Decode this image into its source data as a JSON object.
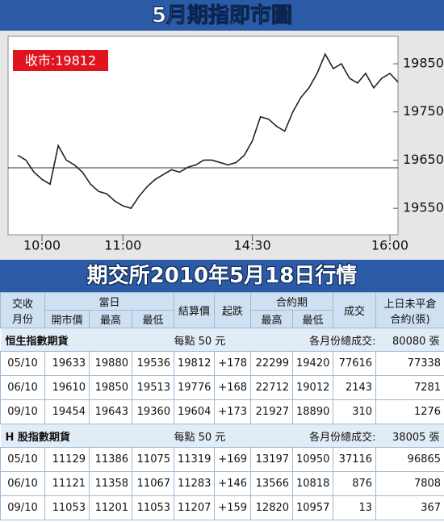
{
  "chart_data": {
    "type": "line",
    "title": "5月期指即市圖",
    "annotation": "收市:19812",
    "categories": [
      null,
      null,
      null,
      "10:00",
      null,
      null,
      null,
      null,
      null,
      null,
      null,
      null,
      null,
      "11:00",
      null,
      null,
      null,
      null,
      null,
      null,
      null,
      null,
      null,
      null,
      null,
      null,
      null,
      null,
      null,
      "14:30",
      null,
      null,
      null,
      null,
      null,
      null,
      null,
      null,
      null,
      null,
      null,
      null,
      null,
      null,
      null,
      null,
      "16:00",
      null
    ],
    "values": [
      19660,
      19650,
      19625,
      19610,
      19600,
      19680,
      19650,
      19640,
      19625,
      19600,
      19585,
      19580,
      19565,
      19555,
      19550,
      19575,
      19595,
      19610,
      19620,
      19630,
      19625,
      19635,
      19640,
      19650,
      19650,
      19645,
      19640,
      19645,
      19660,
      19690,
      19740,
      19735,
      19720,
      19710,
      19750,
      19780,
      19800,
      19830,
      19870,
      19840,
      19850,
      19820,
      19810,
      19830,
      19800,
      19820,
      19830,
      19812
    ],
    "color": "#222222",
    "reference": 19634,
    "ylim": [
      19495,
      19907
    ],
    "yticks": [
      19550,
      19650,
      19750,
      19850
    ]
  },
  "table": {
    "title": "期交所2010年5月18日行情",
    "header": {
      "month": [
        "交收",
        "月份"
      ],
      "day": "當日",
      "open": "開市價",
      "high": "最高",
      "low": "最低",
      "settle": "結算價",
      "change": "起跌",
      "contract": "合約期",
      "c_high": "最高",
      "c_low": "最低",
      "volume": "成交",
      "oi": [
        "上日未平倉",
        "合約(張)"
      ]
    },
    "sections": [
      {
        "name": "恒生指數期貨",
        "unit": "每點 50 元",
        "total_label": "各月份總成交:",
        "total": "80080 張",
        "rows": [
          [
            "05/10",
            "19633",
            "19880",
            "19536",
            "19812",
            "+178",
            "22299",
            "19420",
            "77616",
            "77338"
          ],
          [
            "06/10",
            "19610",
            "19850",
            "19513",
            "19776",
            "+168",
            "22712",
            "19012",
            "2143",
            "7281"
          ],
          [
            "09/10",
            "19454",
            "19643",
            "19360",
            "19604",
            "+173",
            "21927",
            "18890",
            "310",
            "1276"
          ]
        ]
      },
      {
        "name": "H 股指數期貨",
        "unit": "每點 50 元",
        "total_label": "各月份總成交:",
        "total": "38005 張",
        "rows": [
          [
            "05/10",
            "11129",
            "11386",
            "11075",
            "11319",
            "+169",
            "13197",
            "10950",
            "37116",
            "96865"
          ],
          [
            "06/10",
            "11121",
            "11358",
            "11067",
            "11283",
            "+146",
            "13566",
            "10818",
            "876",
            "7808"
          ],
          [
            "09/10",
            "11053",
            "11201",
            "11053",
            "11207",
            "+159",
            "12820",
            "10957",
            "13",
            "367"
          ]
        ]
      }
    ]
  }
}
